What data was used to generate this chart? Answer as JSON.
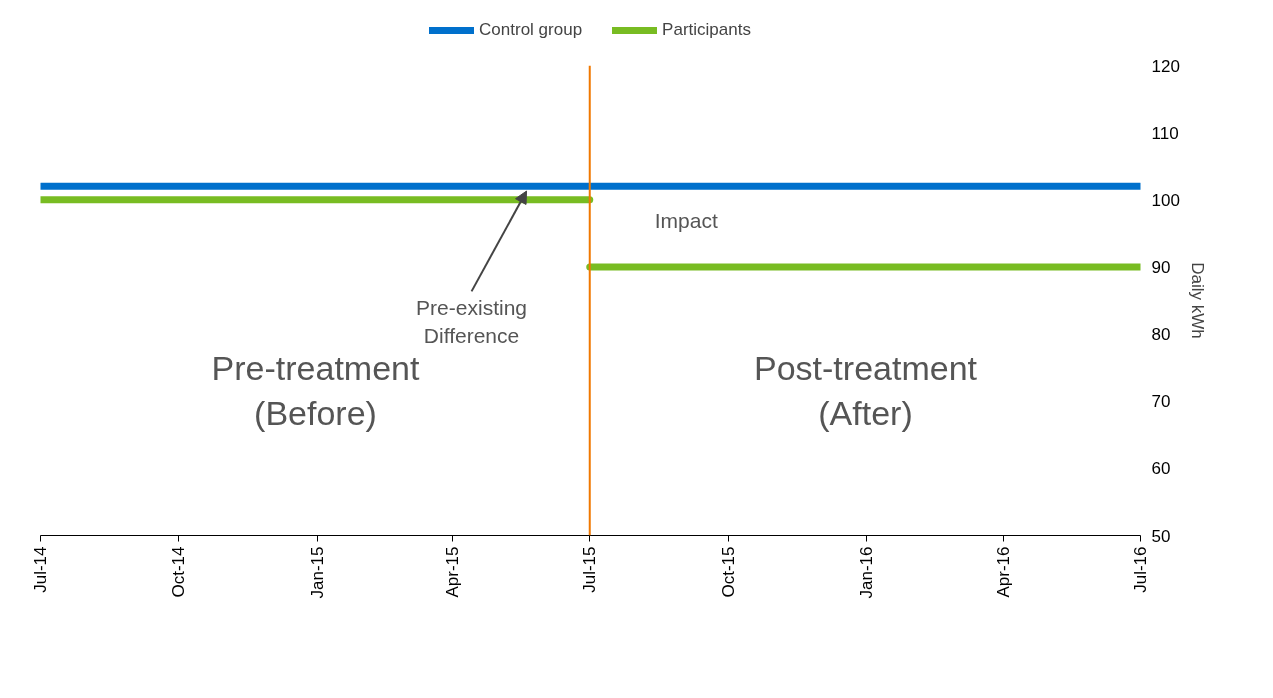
{
  "chart_data": {
    "type": "line",
    "ylabel": "Daily kWh",
    "x": [
      "2014-07-01",
      "2016-07-01"
    ],
    "series": [
      {
        "name": "Control group",
        "color": "#0070cc",
        "values": [
          102,
          102
        ]
      },
      {
        "name": "Participants",
        "color": "#78bc22",
        "x": [
          "2014-07-01",
          "2015-07-01"
        ],
        "values": [
          100,
          100
        ]
      },
      {
        "color": "#78bc22",
        "x": [
          "2015-07-01",
          "2016-07-01"
        ],
        "values": [
          90,
          90
        ]
      }
    ],
    "xlim": [
      "2014-07-01",
      "2016-07-01"
    ],
    "xticks": [
      {
        "value": "2014-07-01",
        "label": "Jul-14"
      },
      {
        "value": "2014-10-01",
        "label": "Oct-14"
      },
      {
        "value": "2015-01-01",
        "label": "Jan-15"
      },
      {
        "value": "2015-04-01",
        "label": "Apr-15"
      },
      {
        "value": "2015-07-01",
        "label": "Jul-15"
      },
      {
        "value": "2015-10-01",
        "label": "Oct-15"
      },
      {
        "value": "2016-01-01",
        "label": "Jan-16"
      },
      {
        "value": "2016-04-01",
        "label": "Apr-16"
      },
      {
        "value": "2016-07-01",
        "label": "Jul-16"
      }
    ],
    "ylim": [
      50,
      120
    ],
    "yticks": [
      50,
      60,
      70,
      80,
      90,
      100,
      110,
      120
    ],
    "ref_lines": [
      {
        "axis": "x",
        "value": "2015-07-01",
        "color": "#f07800"
      }
    ],
    "annotations": [
      "Pre-treatment\n(Before)",
      "Post-treatment\n(After)",
      {
        "text": "Pre-existing\nDifference",
        "x": "2015-05-20",
        "y": 102
      },
      "Impact"
    ],
    "legend": "top",
    "grid": false,
    "line_style": "solid",
    "marker": "none"
  }
}
